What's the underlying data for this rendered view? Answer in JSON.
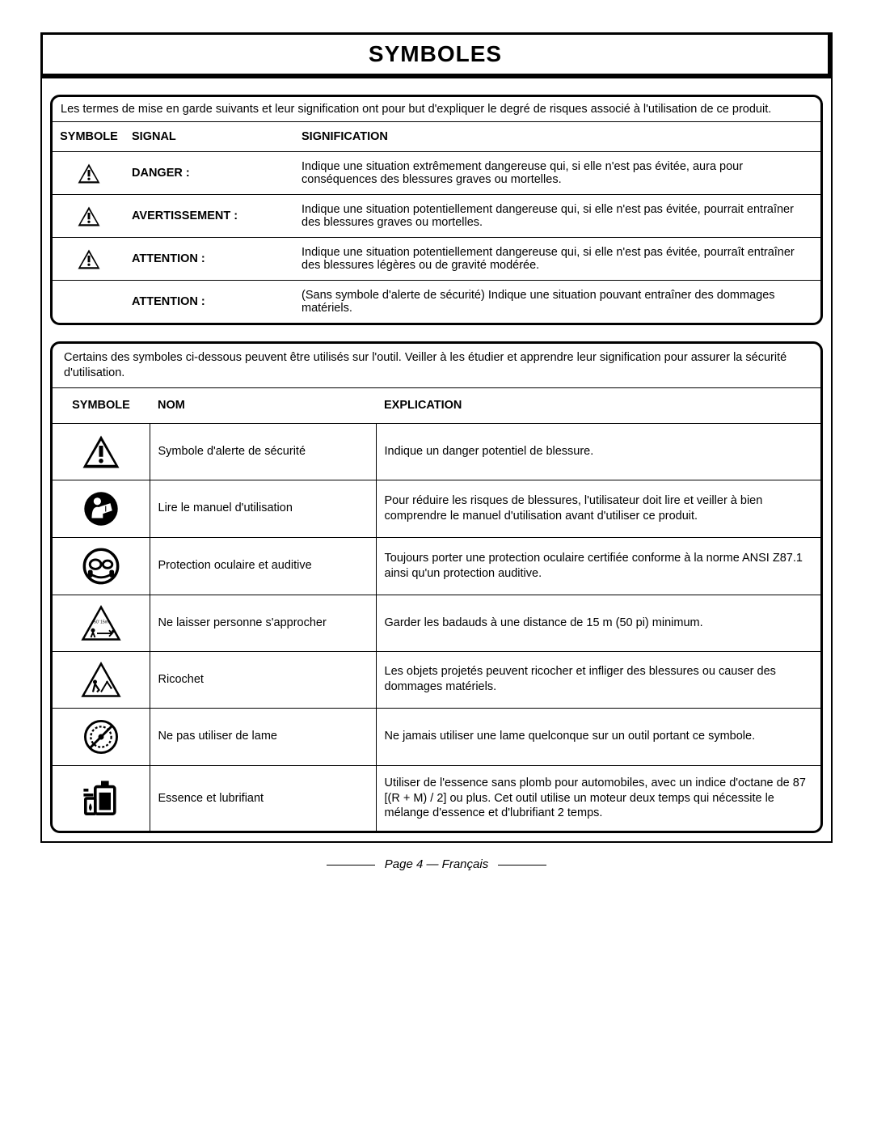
{
  "title": "SYMBOLES",
  "signal_box": {
    "intro": "Les termes de mise en garde suivants et leur signification ont pour but d'expliquer le degré de risques associé à l'utilisation de ce produit.",
    "headers": {
      "symbole": "SYMBOLE",
      "signal": "SIGNAL",
      "signification": "SIGNIFICATION"
    },
    "rows": [
      {
        "has_icon": true,
        "signal": "DANGER :",
        "meaning": "Indique une situation extrêmement dangereuse qui, si elle n'est pas évitée, aura pour conséquences des blessures graves ou mortelles."
      },
      {
        "has_icon": true,
        "signal": "AVERTISSEMENT :",
        "meaning": "Indique une situation potentiellement dangereuse qui, si elle n'est pas évitée, pourrait entraîner des blessures graves ou mortelles."
      },
      {
        "has_icon": true,
        "signal": "ATTENTION :",
        "meaning": "Indique une situation potentiellement dangereuse qui, si elle n'est pas évitée, pourraît entraîner des blessures légères ou de gravité modérée."
      },
      {
        "has_icon": false,
        "signal": "ATTENTION :",
        "meaning": "(Sans symbole d'alerte de sécurité) Indique une situation pouvant entraîner des dommages matériels."
      }
    ]
  },
  "sym_box": {
    "intro": "Certains des symboles ci-dessous peuvent être utilisés sur l'outil. Veiller à les étudier et apprendre leur signification pour assurer la sécurité d'utilisation.",
    "headers": {
      "symbole": "SYMBOLE",
      "nom": "NOM",
      "explication": "EXPLICATION"
    },
    "rows": [
      {
        "icon": "safety-alert",
        "nom": "Symbole d'alerte de sécurité",
        "exp": "Indique un danger potentiel de blessure."
      },
      {
        "icon": "read-manual",
        "nom": "Lire le manuel d'utilisation",
        "exp": "Pour réduire les risques de blessures, l'utilisateur doit lire et veiller à bien comprendre le manuel d'utilisation avant d'utiliser ce produit."
      },
      {
        "icon": "eye-ear",
        "nom": "Protection oculaire et auditive",
        "exp": "Toujours porter une protection oculaire certifiée conforme à la norme ANSI Z87.1 ainsi qu'un protection auditive."
      },
      {
        "icon": "bystanders",
        "nom": "Ne laisser personne s'approcher",
        "exp": "Garder les badauds à une distance de 15 m (50 pi) minimum."
      },
      {
        "icon": "ricochet",
        "nom": "Ricochet",
        "exp": "Les objets projetés peuvent ricocher et infliger des blessures ou causer des dommages matériels."
      },
      {
        "icon": "no-blade",
        "nom": "Ne pas utiliser de lame",
        "exp": "Ne jamais utiliser une lame quelconque sur un outil portant ce symbole."
      },
      {
        "icon": "fuel-oil",
        "nom": "Essence et lubrifiant",
        "exp": "Utiliser de l'essence sans plomb pour automobiles, avec un indice d'octane de 87 [(R + M) / 2] ou plus. Cet outil utilise un moteur deux temps qui nécessite le mélange d'essence et d'lubrifiant 2 temps."
      }
    ]
  },
  "footer": "Page 4 — Français"
}
